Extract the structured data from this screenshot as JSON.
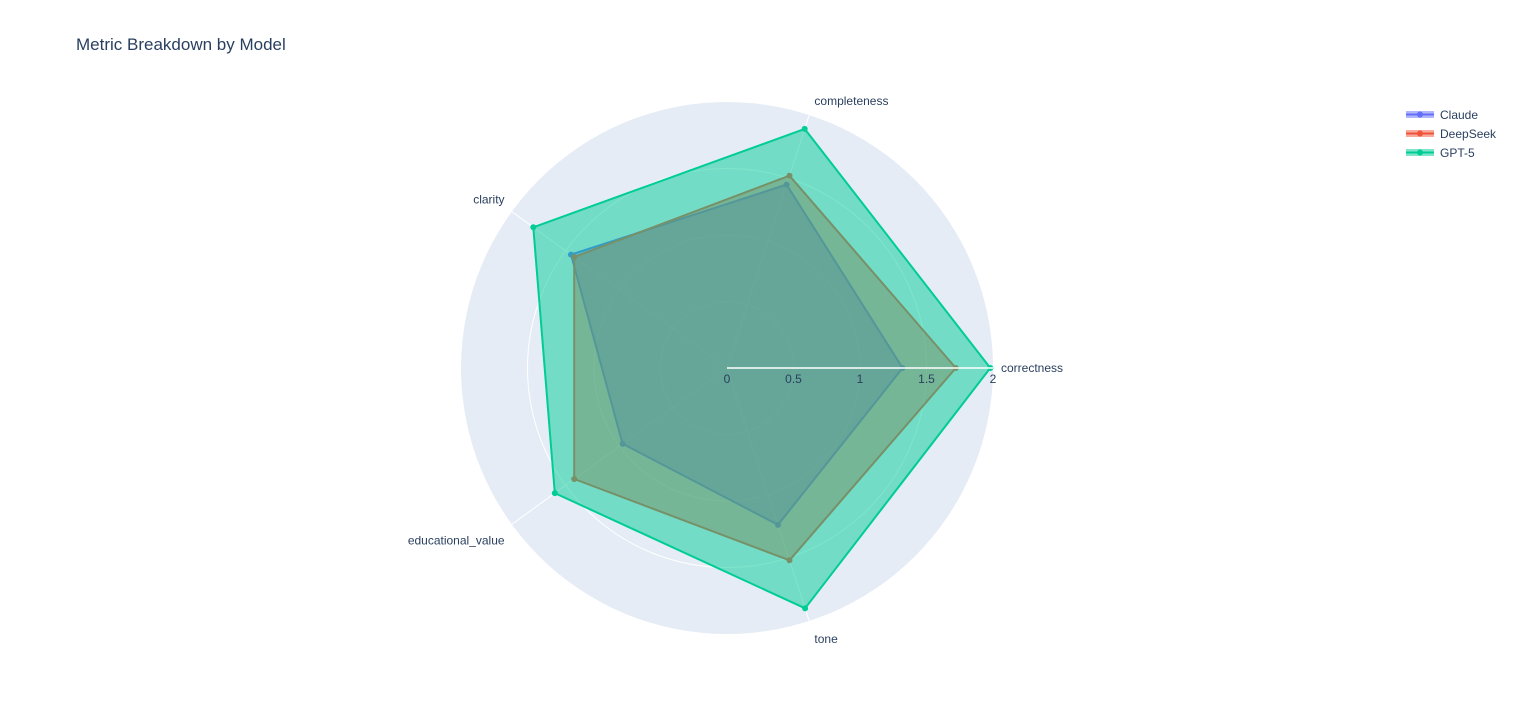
{
  "chart_data": {
    "type": "radar",
    "title": "Metric Breakdown by Model",
    "categories": [
      "correctness",
      "completeness",
      "clarity",
      "educational_value",
      "tone"
    ],
    "radial_range": [
      0,
      2
    ],
    "radial_ticks": [
      0,
      0.5,
      1,
      1.5,
      2
    ],
    "radial_tick_labels": [
      "0",
      "0.5",
      "1",
      "1.5",
      "2"
    ],
    "series": [
      {
        "name": "Claude",
        "color": "#636efa",
        "values": [
          1.32,
          1.45,
          1.45,
          0.97,
          1.24
        ]
      },
      {
        "name": "DeepSeek",
        "color": "#ef553b",
        "values": [
          1.72,
          1.52,
          1.42,
          1.42,
          1.52
        ]
      },
      {
        "name": "GPT-5",
        "color": "#00cc96",
        "values": [
          1.98,
          1.89,
          1.8,
          1.6,
          1.9
        ]
      }
    ],
    "grid": true,
    "legend_position": "top-right",
    "background_color": "#e5ecf6"
  }
}
